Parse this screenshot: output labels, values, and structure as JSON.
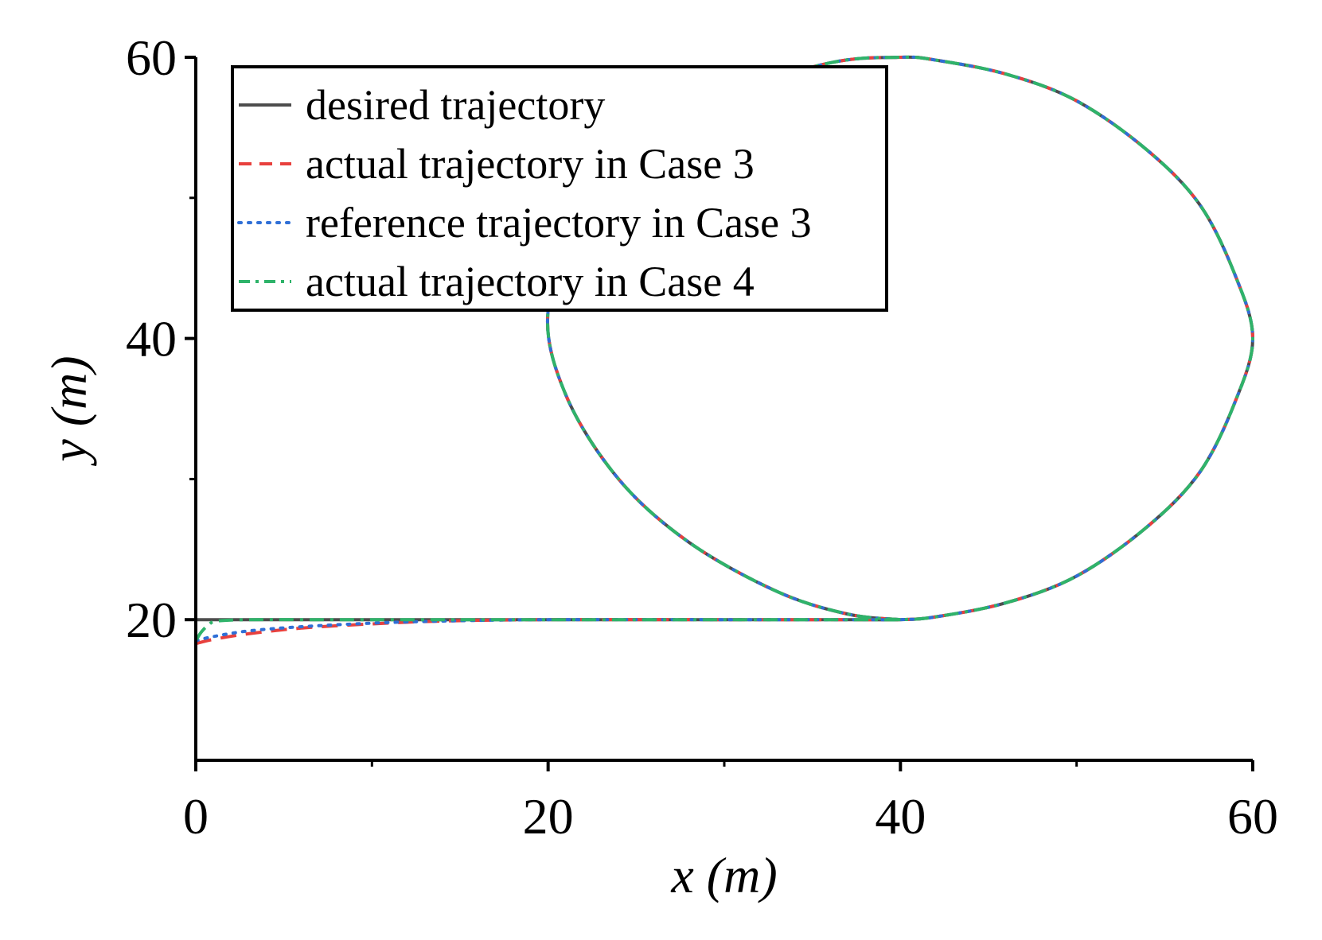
{
  "chart_data": {
    "type": "line",
    "title": "",
    "xlabel": "x (m)",
    "ylabel": "y (m)",
    "xlim": [
      0,
      60
    ],
    "ylim": [
      10,
      60
    ],
    "x_ticks": [
      0,
      20,
      40,
      60
    ],
    "y_ticks": [
      20,
      40,
      60
    ],
    "x_minor_ticks": [
      10,
      30,
      50
    ],
    "y_minor_ticks": [
      30,
      50
    ],
    "grid": false,
    "legend_position": "top-left",
    "series": [
      {
        "name": "desired trajectory",
        "style": "solid",
        "color": "#4d4d4d",
        "x": [
          0,
          10,
          20,
          30,
          38,
          40,
          42,
          46,
          50,
          54,
          57,
          59,
          60,
          59,
          57,
          54,
          50,
          46,
          42,
          40,
          36,
          30,
          25,
          22,
          20,
          21,
          24,
          28,
          33,
          37,
          40
        ],
        "y": [
          20,
          20,
          20,
          20,
          20,
          20,
          20.2,
          21.2,
          23.1,
          26.6,
          30.5,
          35.5,
          40,
          44.5,
          49.5,
          53.4,
          56.9,
          58.8,
          59.8,
          60,
          59.6,
          57.3,
          53.5,
          48.5,
          42,
          36,
          30,
          25.5,
          22,
          20.4,
          20
        ]
      },
      {
        "name": "actual trajectory in Case 3",
        "style": "dashed",
        "color": "#e8403d",
        "x": [
          0,
          1,
          3,
          6,
          10,
          14,
          20,
          30,
          38,
          40,
          42,
          46,
          50,
          54,
          57,
          59,
          60,
          59,
          57,
          54,
          50,
          46,
          42,
          40,
          36,
          30,
          25,
          22,
          20,
          21,
          24,
          28,
          33,
          37,
          40
        ],
        "y": [
          18.3,
          18.6,
          19.0,
          19.4,
          19.7,
          19.9,
          20,
          20,
          20,
          20,
          20.2,
          21.2,
          23.1,
          26.6,
          30.5,
          35.5,
          40,
          44.5,
          49.5,
          53.4,
          56.9,
          58.8,
          59.8,
          60,
          59.6,
          57.3,
          53.5,
          48.5,
          42,
          36,
          30,
          25.5,
          22,
          20.4,
          20
        ]
      },
      {
        "name": "reference trajectory in Case 3",
        "style": "dotted",
        "color": "#2f6fd6",
        "x": [
          0,
          1,
          3,
          6,
          10,
          14,
          20,
          30,
          38,
          40,
          42,
          46,
          50,
          54,
          57,
          59,
          60,
          59,
          57,
          54,
          50,
          46,
          42,
          40,
          36,
          30,
          25,
          22,
          20,
          21,
          24,
          28,
          33,
          37,
          40
        ],
        "y": [
          18.5,
          18.8,
          19.2,
          19.5,
          19.75,
          19.9,
          20,
          20,
          20,
          20,
          20.2,
          21.2,
          23.1,
          26.6,
          30.5,
          35.5,
          40,
          44.5,
          49.5,
          53.4,
          56.9,
          58.8,
          59.8,
          60,
          59.6,
          57.3,
          53.5,
          48.5,
          42,
          36,
          30,
          25.5,
          22,
          20.4,
          20
        ]
      },
      {
        "name": "actual trajectory in Case 4",
        "style": "dashdot",
        "color": "#2fb36a",
        "x": [
          0.05,
          0.3,
          0.7,
          1.2,
          3,
          6,
          10,
          20,
          30,
          38,
          40,
          42,
          46,
          50,
          54,
          57,
          59,
          60,
          59,
          57,
          54,
          50,
          46,
          42,
          40,
          36,
          30,
          25,
          22,
          20,
          21,
          24,
          28,
          33,
          37,
          40
        ],
        "y": [
          18.6,
          19.1,
          19.6,
          19.9,
          20,
          20,
          20,
          20,
          20,
          20,
          20,
          20.2,
          21.2,
          23.1,
          26.6,
          30.5,
          35.5,
          40,
          44.5,
          49.5,
          53.4,
          56.9,
          58.8,
          59.8,
          60,
          59.6,
          57.3,
          53.5,
          48.5,
          42,
          36,
          30,
          25.5,
          22,
          20.4,
          20
        ]
      }
    ]
  }
}
